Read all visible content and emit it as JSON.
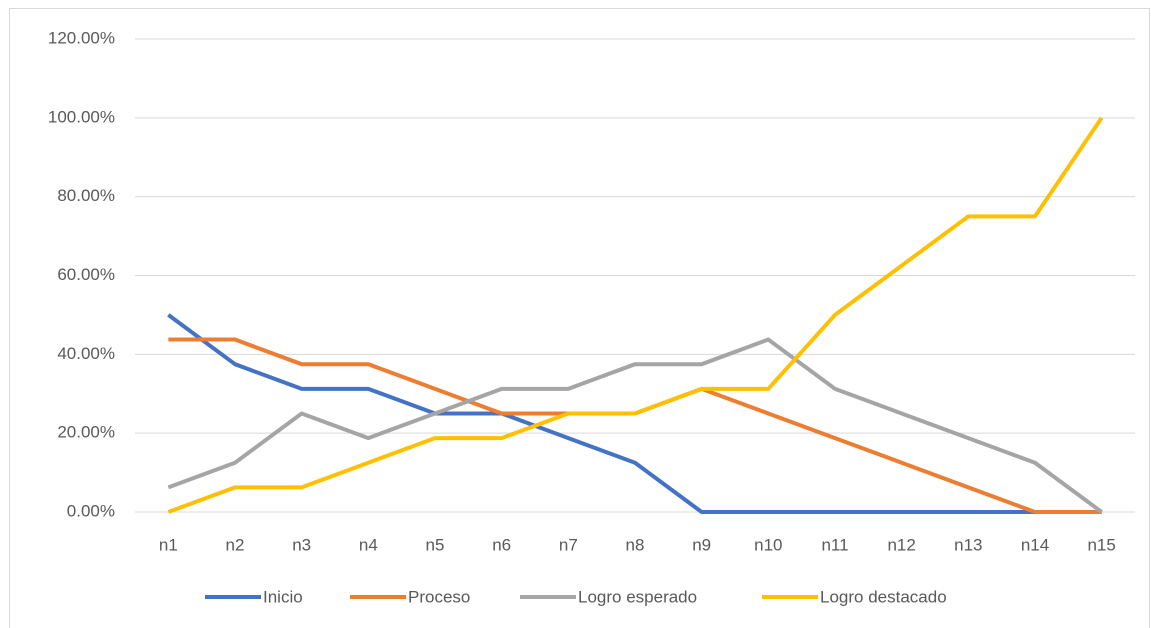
{
  "chart_data": {
    "type": "line",
    "categories": [
      "n1",
      "n2",
      "n3",
      "n4",
      "n5",
      "n6",
      "n7",
      "n8",
      "n9",
      "n10",
      "n11",
      "n12",
      "n13",
      "n14",
      "n15"
    ],
    "series": [
      {
        "name": "Inicio",
        "color": "#4472c4",
        "values": [
          50,
          37.5,
          31.25,
          31.25,
          25,
          25,
          18.75,
          12.5,
          0,
          0,
          0,
          0,
          0,
          0,
          0
        ]
      },
      {
        "name": "Proceso",
        "color": "#ed7d31",
        "values": [
          43.75,
          43.75,
          37.5,
          37.5,
          31.25,
          25,
          25,
          25,
          31.25,
          25,
          18.75,
          12.5,
          6.25,
          0,
          0
        ]
      },
      {
        "name": "Logro esperado",
        "color": "#a5a5a5",
        "values": [
          6.25,
          12.5,
          25,
          18.75,
          25,
          31.25,
          31.25,
          37.5,
          37.5,
          43.75,
          31.25,
          25,
          18.75,
          12.5,
          0
        ]
      },
      {
        "name": "Logro destacado",
        "color": "#ffc000",
        "values": [
          0,
          6.25,
          6.25,
          12.5,
          18.75,
          18.75,
          25,
          25,
          31.25,
          31.25,
          50,
          62.5,
          75,
          75,
          100
        ]
      }
    ],
    "ylim": [
      0,
      120
    ],
    "yticks": [
      {
        "value": 0,
        "label": "0.00%"
      },
      {
        "value": 20,
        "label": "20.00%"
      },
      {
        "value": 40,
        "label": "40.00%"
      },
      {
        "value": 60,
        "label": "60.00%"
      },
      {
        "value": 80,
        "label": "80.00%"
      },
      {
        "value": 100,
        "label": "100.00%"
      },
      {
        "value": 120,
        "label": "120.00%"
      }
    ],
    "grid": true,
    "legend": "bottom"
  }
}
